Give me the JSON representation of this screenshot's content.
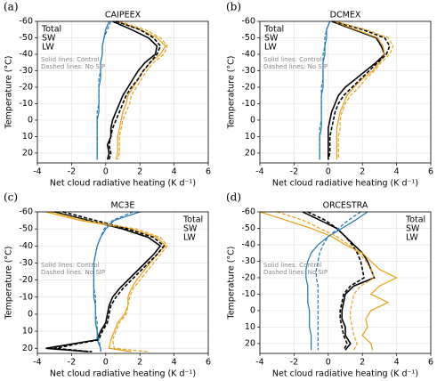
{
  "chart_data": [
    {
      "type": "line",
      "panel_label": "(a)",
      "title": "CAIPEEX",
      "xlabel": "Net cloud radiative heating (K d⁻¹)",
      "ylabel": "Temperature (°C)",
      "annotations": [
        "Solid lines: Control",
        "Dashed lines: No SIP"
      ],
      "xlim": [
        -4,
        6
      ],
      "xticks": [
        -4,
        -2,
        0,
        2,
        4,
        6
      ],
      "ylim": [
        26,
        -60
      ],
      "yticks": [
        -60,
        -50,
        -40,
        -30,
        -20,
        -10,
        0,
        10,
        20
      ],
      "grid": true,
      "legend_loc": "upper left",
      "y": [
        -60,
        -55,
        -50,
        -45,
        -40,
        -35,
        -30,
        -25,
        -20,
        -15,
        -10,
        -5,
        0,
        5,
        10,
        15,
        20,
        24
      ],
      "series": [
        {
          "name": "Total",
          "color": "#000000",
          "dashed": false,
          "values": [
            0.4,
            1.5,
            2.5,
            3.0,
            2.9,
            2.3,
            1.9,
            1.6,
            1.3,
            1.0,
            0.8,
            0.6,
            0.4,
            0.3,
            0.3,
            0.1,
            0.2,
            0.1
          ]
        },
        {
          "name": "SW",
          "color": "#1f77b4",
          "dashed": false,
          "values": [
            0.2,
            0.0,
            -0.1,
            -0.2,
            -0.2,
            -0.3,
            -0.3,
            -0.3,
            -0.4,
            -0.4,
            -0.4,
            -0.4,
            -0.5,
            -0.5,
            -0.5,
            -0.5,
            -0.5,
            -0.5
          ]
        },
        {
          "name": "LW",
          "color": "#e6a117",
          "dashed": false,
          "values": [
            0.6,
            2.0,
            3.0,
            3.5,
            3.2,
            2.6,
            2.2,
            1.9,
            1.6,
            1.3,
            1.2,
            1.0,
            0.9,
            0.8,
            0.7,
            0.7,
            0.7,
            0.6
          ]
        },
        {
          "name": "Total",
          "color": "#000000",
          "dashed": true,
          "values": [
            0.6,
            2.0,
            2.8,
            3.2,
            3.0,
            2.6,
            2.2,
            1.9,
            1.5,
            1.2,
            1.0,
            0.8,
            0.6,
            0.4,
            0.3,
            0.2,
            0.3,
            0.2
          ]
        },
        {
          "name": "SW",
          "color": "#1f77b4",
          "dashed": true,
          "values": [
            0.3,
            0.1,
            -0.1,
            -0.2,
            -0.2,
            -0.3,
            -0.3,
            -0.4,
            -0.4,
            -0.4,
            -0.4,
            -0.5,
            -0.5,
            -0.5,
            -0.5,
            -0.5,
            -0.5,
            -0.5
          ]
        },
        {
          "name": "LW",
          "color": "#e6a117",
          "dashed": true,
          "values": [
            0.8,
            2.3,
            3.2,
            3.6,
            3.4,
            2.8,
            2.4,
            2.1,
            1.8,
            1.5,
            1.4,
            1.2,
            1.0,
            0.9,
            0.8,
            0.8,
            0.8,
            0.7
          ]
        }
      ]
    },
    {
      "type": "line",
      "panel_label": "(b)",
      "title": "DCMEX",
      "xlabel": "Net cloud radiative heating (K d⁻¹)",
      "ylabel": "Temperature (°C)",
      "annotations": [
        "Solid lines: Control",
        "Dashed lines: No SIP"
      ],
      "xlim": [
        -4,
        6
      ],
      "xticks": [
        -4,
        -2,
        0,
        2,
        4,
        6
      ],
      "ylim": [
        26,
        -60
      ],
      "yticks": [
        -60,
        -50,
        -40,
        -30,
        -20,
        -10,
        0,
        10,
        20
      ],
      "grid": true,
      "legend_loc": "upper left",
      "y": [
        -60,
        -55,
        -50,
        -45,
        -40,
        -35,
        -30,
        -25,
        -20,
        -15,
        -10,
        -5,
        0,
        5,
        10,
        15,
        20,
        24
      ],
      "series": [
        {
          "name": "Total",
          "color": "#000000",
          "dashed": false,
          "values": [
            0.2,
            1.5,
            2.8,
            3.1,
            3.3,
            2.8,
            2.2,
            1.6,
            1.0,
            0.6,
            0.4,
            0.2,
            0.1,
            0.0,
            0.0,
            0.0,
            0.0,
            0.0
          ]
        },
        {
          "name": "SW",
          "color": "#1f77b4",
          "dashed": false,
          "values": [
            0.1,
            -0.1,
            -0.1,
            -0.2,
            -0.2,
            -0.3,
            -0.3,
            -0.3,
            -0.3,
            -0.4,
            -0.4,
            -0.4,
            -0.4,
            -0.4,
            -0.5,
            -0.5,
            -0.5,
            -0.5
          ]
        },
        {
          "name": "LW",
          "color": "#e6a117",
          "dashed": false,
          "values": [
            0.3,
            1.6,
            2.9,
            3.2,
            3.3,
            3.0,
            2.6,
            2.0,
            1.5,
            1.1,
            0.9,
            0.7,
            0.6,
            0.5,
            0.5,
            0.5,
            0.5,
            0.5
          ]
        },
        {
          "name": "Total",
          "color": "#000000",
          "dashed": true,
          "values": [
            0.3,
            2.0,
            3.3,
            3.6,
            3.4,
            2.9,
            2.4,
            1.9,
            1.4,
            0.9,
            0.6,
            0.4,
            0.3,
            0.2,
            0.1,
            0.1,
            0.1,
            0.0
          ]
        },
        {
          "name": "SW",
          "color": "#1f77b4",
          "dashed": true,
          "values": [
            0.1,
            -0.1,
            -0.2,
            -0.2,
            -0.3,
            -0.3,
            -0.3,
            -0.3,
            -0.4,
            -0.4,
            -0.4,
            -0.4,
            -0.4,
            -0.5,
            -0.5,
            -0.5,
            -0.5,
            -0.5
          ]
        },
        {
          "name": "LW",
          "color": "#e6a117",
          "dashed": true,
          "values": [
            0.4,
            2.2,
            3.5,
            3.8,
            3.6,
            3.1,
            2.7,
            2.2,
            1.8,
            1.3,
            1.0,
            0.8,
            0.7,
            0.7,
            0.6,
            0.6,
            0.6,
            0.6
          ]
        }
      ]
    },
    {
      "type": "line",
      "panel_label": "(c)",
      "title": "MC3E",
      "xlabel": "Net cloud radiative heating (K d⁻¹)",
      "ylabel": "Temperature (°C)",
      "annotations": [
        "Solid lines: Control",
        "Dashed lines: No SIP"
      ],
      "xlim": [
        -4,
        6
      ],
      "xticks": [
        -4,
        -2,
        0,
        2,
        4,
        6
      ],
      "ylim": [
        23,
        -60
      ],
      "yticks": [
        -60,
        -50,
        -40,
        -30,
        -20,
        -10,
        0,
        10,
        20
      ],
      "grid": true,
      "legend_loc": "upper right",
      "y": [
        -60,
        -55,
        -50,
        -45,
        -40,
        -35,
        -30,
        -25,
        -20,
        -15,
        -10,
        -5,
        0,
        5,
        10,
        15,
        20,
        22
      ],
      "series": [
        {
          "name": "Total",
          "color": "#000000",
          "dashed": false,
          "values": [
            -3.0,
            -1.0,
            1.0,
            2.5,
            3.2,
            2.8,
            2.3,
            1.8,
            1.3,
            0.8,
            0.4,
            0.2,
            0.1,
            0.0,
            -0.3,
            -0.5,
            -3.5,
            -1.0
          ]
        },
        {
          "name": "SW",
          "color": "#1f77b4",
          "dashed": false,
          "values": [
            2.0,
            0.5,
            0.0,
            -0.3,
            -0.5,
            -0.6,
            -0.7,
            -0.7,
            -0.7,
            -0.7,
            -0.7,
            -0.6,
            -0.6,
            -0.6,
            -0.5,
            -0.5,
            -0.3,
            -0.3
          ]
        },
        {
          "name": "LW",
          "color": "#e6a117",
          "dashed": false,
          "values": [
            -3.5,
            -1.5,
            1.5,
            3.0,
            3.5,
            3.0,
            2.6,
            2.2,
            1.8,
            1.5,
            1.3,
            1.3,
            1.1,
            0.7,
            0.5,
            0.3,
            0.2,
            1.5
          ]
        },
        {
          "name": "Total",
          "color": "#000000",
          "dashed": true,
          "values": [
            -2.5,
            -0.6,
            1.3,
            2.8,
            3.4,
            3.0,
            2.5,
            2.0,
            1.5,
            1.0,
            0.6,
            0.3,
            0.2,
            0.1,
            -0.2,
            -0.4,
            -3.0,
            -0.8
          ]
        },
        {
          "name": "SW",
          "color": "#1f77b4",
          "dashed": true,
          "values": [
            1.6,
            0.4,
            -0.1,
            -0.3,
            -0.5,
            -0.6,
            -0.7,
            -0.7,
            -0.7,
            -0.7,
            -0.6,
            -0.6,
            -0.6,
            -0.5,
            -0.5,
            -0.4,
            -0.3,
            -0.3
          ]
        },
        {
          "name": "LW",
          "color": "#e6a117",
          "dashed": true,
          "values": [
            -3.2,
            -1.2,
            1.8,
            3.2,
            3.6,
            3.2,
            2.8,
            2.4,
            2.0,
            1.6,
            1.4,
            1.3,
            1.2,
            0.8,
            0.6,
            0.4,
            0.5,
            2.5
          ]
        }
      ]
    },
    {
      "type": "line",
      "panel_label": "(d)",
      "title": "ORCESTRA",
      "xlabel": "Net cloud radiative heating (K d⁻¹)",
      "ylabel": "Temperature (°C)",
      "annotations": [
        "Solid lines: Control",
        "Dashed lines: No SIP"
      ],
      "xlim": [
        -4,
        6
      ],
      "xticks": [
        -4,
        -2,
        0,
        2,
        4,
        6
      ],
      "ylim": [
        26,
        -60
      ],
      "yticks": [
        -60,
        -50,
        -40,
        -30,
        -20,
        -10,
        0,
        10,
        20
      ],
      "grid": true,
      "legend_loc": "upper right",
      "y": [
        -60,
        -55,
        -50,
        -45,
        -40,
        -35,
        -30,
        -25,
        -20,
        -15,
        -10,
        -5,
        0,
        5,
        10,
        15,
        20,
        24
      ],
      "series": [
        {
          "name": "Total",
          "color": "#000000",
          "dashed": false,
          "values": [
            -1.5,
            -0.5,
            0.5,
            1.0,
            1.5,
            2.0,
            2.3,
            2.5,
            2.7,
            1.5,
            1.0,
            0.9,
            0.8,
            0.8,
            1.0,
            1.0,
            1.3,
            1.0
          ]
        },
        {
          "name": "SW",
          "color": "#1f77b4",
          "dashed": false,
          "values": [
            2.3,
            1.6,
            0.8,
            0.0,
            -0.6,
            -1.0,
            -1.2,
            -1.3,
            -1.3,
            -1.2,
            -1.2,
            -1.2,
            -1.1,
            -1.1,
            -1.1,
            -1.0,
            -1.0,
            -1.0
          ]
        },
        {
          "name": "LW",
          "color": "#e6a117",
          "dashed": false,
          "values": [
            -4.0,
            -2.5,
            -1.0,
            0.2,
            1.0,
            2.0,
            2.5,
            3.0,
            4.0,
            3.0,
            2.5,
            3.5,
            2.5,
            2.2,
            2.3,
            2.0,
            2.5,
            2.6
          ]
        },
        {
          "name": "Total",
          "color": "#000000",
          "dashed": true,
          "values": [
            -1.2,
            -0.2,
            0.5,
            1.0,
            1.4,
            1.7,
            1.9,
            2.0,
            2.1,
            1.3,
            0.9,
            0.8,
            0.7,
            0.7,
            0.8,
            0.9,
            1.1,
            0.9
          ]
        },
        {
          "name": "SW",
          "color": "#1f77b4",
          "dashed": true,
          "values": [
            1.9,
            1.2,
            0.6,
            0.0,
            -0.3,
            -0.5,
            -0.6,
            -0.7,
            -0.7,
            -0.6,
            -0.6,
            -0.6,
            -0.6,
            -0.6,
            -0.6,
            -0.6,
            -0.6,
            -0.6
          ]
        },
        {
          "name": "LW",
          "color": "#e6a117",
          "dashed": true,
          "values": [
            -3.0,
            -1.5,
            -0.5,
            0.5,
            1.2,
            1.8,
            2.2,
            2.5,
            2.7,
            1.9,
            1.5,
            1.4,
            1.3,
            1.3,
            1.4,
            1.5,
            1.7,
            1.5
          ]
        }
      ]
    }
  ]
}
